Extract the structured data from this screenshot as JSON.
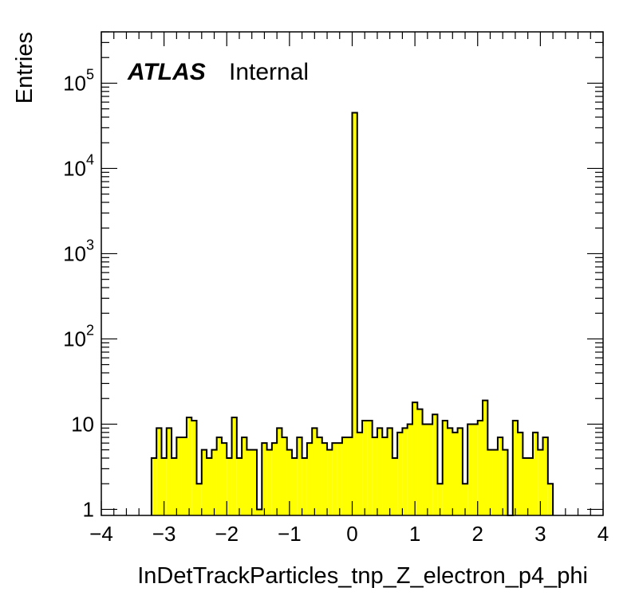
{
  "chart_data": {
    "type": "bar",
    "title": "",
    "xlabel": "InDetTrackParticles_tnp_Z_electron_p4_phi",
    "ylabel": "Entries",
    "xlim": [
      -4,
      4
    ],
    "ylim": [
      0.85,
      400000
    ],
    "y_scale": "log",
    "bin_width": 0.08,
    "grid": false,
    "fill_color": "#ffff00",
    "line_color": "#000000",
    "annotation": {
      "atlas": "ATLAS",
      "status": "Internal"
    },
    "xticks": [
      "−4",
      "−3",
      "−2",
      "−1",
      "0",
      "1",
      "2",
      "3",
      "4"
    ],
    "yticks": [
      {
        "value": 1,
        "base": "1",
        "exp": ""
      },
      {
        "value": 10,
        "base": "10",
        "exp": ""
      },
      {
        "value": 100,
        "base": "10",
        "exp": "2"
      },
      {
        "value": 1000,
        "base": "10",
        "exp": "3"
      },
      {
        "value": 10000,
        "base": "10",
        "exp": "4"
      },
      {
        "value": 100000,
        "base": "10",
        "exp": "5"
      }
    ],
    "bins": [
      {
        "x": -3.2,
        "y": 4
      },
      {
        "x": -3.12,
        "y": 9
      },
      {
        "x": -3.04,
        "y": 4
      },
      {
        "x": -2.96,
        "y": 9
      },
      {
        "x": -2.88,
        "y": 4
      },
      {
        "x": -2.8,
        "y": 7
      },
      {
        "x": -2.72,
        "y": 7
      },
      {
        "x": -2.64,
        "y": 12
      },
      {
        "x": -2.56,
        "y": 11
      },
      {
        "x": -2.48,
        "y": 2
      },
      {
        "x": -2.4,
        "y": 5
      },
      {
        "x": -2.32,
        "y": 4
      },
      {
        "x": -2.24,
        "y": 5
      },
      {
        "x": -2.16,
        "y": 7
      },
      {
        "x": -2.08,
        "y": 6
      },
      {
        "x": -2.0,
        "y": 4
      },
      {
        "x": -1.92,
        "y": 12
      },
      {
        "x": -1.84,
        "y": 4
      },
      {
        "x": -1.76,
        "y": 7
      },
      {
        "x": -1.68,
        "y": 5
      },
      {
        "x": -1.6,
        "y": 5
      },
      {
        "x": -1.52,
        "y": 1
      },
      {
        "x": -1.44,
        "y": 6
      },
      {
        "x": -1.36,
        "y": 5
      },
      {
        "x": -1.28,
        "y": 6
      },
      {
        "x": -1.2,
        "y": 9
      },
      {
        "x": -1.12,
        "y": 7
      },
      {
        "x": -1.04,
        "y": 5
      },
      {
        "x": -0.96,
        "y": 4
      },
      {
        "x": -0.88,
        "y": 7
      },
      {
        "x": -0.8,
        "y": 4
      },
      {
        "x": -0.72,
        "y": 6
      },
      {
        "x": -0.64,
        "y": 9
      },
      {
        "x": -0.56,
        "y": 7
      },
      {
        "x": -0.48,
        "y": 6
      },
      {
        "x": -0.4,
        "y": 5
      },
      {
        "x": -0.32,
        "y": 6
      },
      {
        "x": -0.24,
        "y": 6
      },
      {
        "x": -0.16,
        "y": 7
      },
      {
        "x": -0.08,
        "y": 7
      },
      {
        "x": 0.0,
        "y": 45000
      },
      {
        "x": 0.08,
        "y": 8
      },
      {
        "x": 0.16,
        "y": 11
      },
      {
        "x": 0.24,
        "y": 11
      },
      {
        "x": 0.32,
        "y": 7
      },
      {
        "x": 0.4,
        "y": 9
      },
      {
        "x": 0.48,
        "y": 7
      },
      {
        "x": 0.56,
        "y": 9
      },
      {
        "x": 0.64,
        "y": 4
      },
      {
        "x": 0.72,
        "y": 8
      },
      {
        "x": 0.8,
        "y": 9
      },
      {
        "x": 0.88,
        "y": 10
      },
      {
        "x": 0.96,
        "y": 18
      },
      {
        "x": 1.04,
        "y": 15
      },
      {
        "x": 1.12,
        "y": 10
      },
      {
        "x": 1.2,
        "y": 10
      },
      {
        "x": 1.28,
        "y": 13
      },
      {
        "x": 1.36,
        "y": 2
      },
      {
        "x": 1.44,
        "y": 11
      },
      {
        "x": 1.52,
        "y": 9
      },
      {
        "x": 1.6,
        "y": 8
      },
      {
        "x": 1.68,
        "y": 9
      },
      {
        "x": 1.76,
        "y": 2
      },
      {
        "x": 1.84,
        "y": 10
      },
      {
        "x": 1.92,
        "y": 10
      },
      {
        "x": 2.0,
        "y": 11
      },
      {
        "x": 2.08,
        "y": 19
      },
      {
        "x": 2.16,
        "y": 5
      },
      {
        "x": 2.24,
        "y": 5
      },
      {
        "x": 2.32,
        "y": 7
      },
      {
        "x": 2.4,
        "y": 5
      },
      {
        "x": 2.48,
        "y": 0
      },
      {
        "x": 2.56,
        "y": 11
      },
      {
        "x": 2.64,
        "y": 8
      },
      {
        "x": 2.72,
        "y": 4
      },
      {
        "x": 2.8,
        "y": 4
      },
      {
        "x": 2.88,
        "y": 8
      },
      {
        "x": 2.96,
        "y": 5
      },
      {
        "x": 3.04,
        "y": 7
      },
      {
        "x": 3.12,
        "y": 2
      }
    ]
  }
}
